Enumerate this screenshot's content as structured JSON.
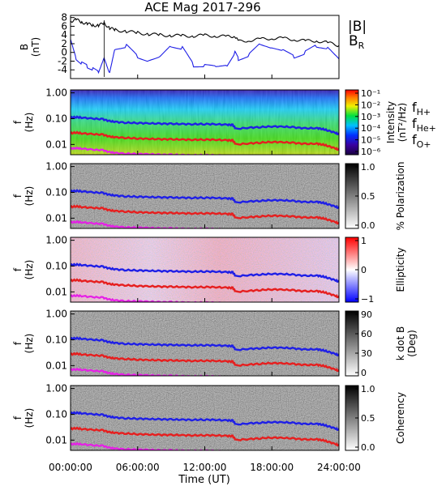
{
  "title": "ACE Mag 2017-296",
  "time_axis": {
    "label": "Time (UT)",
    "ticks": [
      "00:00:00",
      "06:00:00",
      "12:00:00",
      "18:00:00",
      "24:00:00"
    ],
    "range_hours": [
      0,
      24
    ]
  },
  "colors": {
    "B_total": "#000000",
    "B_R": "#1f1fe6",
    "f_H": "#1f1fe6",
    "f_He": "#e61f1f",
    "f_O": "#e61fe6"
  },
  "legend_B": {
    "total": "|B|",
    "radial_main": "B",
    "radial_sub": "R"
  },
  "legend_f": {
    "h": {
      "main": "f",
      "sub": "H+"
    },
    "he": {
      "main": "f",
      "sub": "He+"
    },
    "o": {
      "main": "f",
      "sub": "O+"
    }
  },
  "chart_data": {
    "type": "line",
    "panels": [
      {
        "id": "b-field",
        "ylabel": "B",
        "yunit": "(nT)",
        "ylim": [
          -6,
          8.5
        ],
        "yticks": [
          "8",
          "6",
          "4",
          "2",
          "0",
          "-2",
          "-4"
        ],
        "series": [
          {
            "name": "|B|",
            "x_hours": [
              0,
              0.5,
              1,
              1.5,
              2,
              2.5,
              3,
              3.5,
              4,
              5,
              6,
              7,
              8,
              9,
              10,
              11,
              12,
              13,
              14,
              14.7,
              15,
              16,
              17,
              18,
              19,
              20,
              21,
              22,
              23,
              24
            ],
            "values": [
              7.2,
              7.5,
              7.0,
              6.5,
              6.3,
              6.1,
              6.8,
              5.5,
              5.2,
              4.8,
              4.5,
              4.2,
              4.0,
              3.9,
              3.8,
              3.8,
              3.9,
              3.8,
              3.6,
              3.8,
              2.5,
              2.8,
              3.0,
              3.3,
              3.2,
              3.0,
              2.6,
              2.7,
              2.2,
              1.6
            ]
          },
          {
            "name": "B_R",
            "x_hours": [
              0,
              0.5,
              1,
              1.5,
              2,
              2.5,
              3,
              3.5,
              4,
              5,
              6,
              7,
              8,
              9,
              10,
              11,
              12,
              13,
              14,
              14.7,
              15,
              16,
              17,
              18,
              19,
              20,
              21,
              22,
              23,
              24
            ],
            "values": [
              3.0,
              -1.5,
              -2.5,
              -3.2,
              -3.8,
              -4.5,
              -1.2,
              -4.8,
              1.0,
              1.5,
              -1.0,
              -2.0,
              -1.0,
              1.5,
              1.0,
              -3.0,
              -3.0,
              -3.2,
              -3.0,
              0.0,
              -1.5,
              -0.5,
              2.0,
              1.0,
              0.5,
              -1.0,
              0.0,
              1.5,
              1.0,
              -1.5
            ]
          }
        ]
      },
      {
        "id": "intensity",
        "ylabel": "f",
        "yunit": "(Hz)",
        "colorbar_label": "Intensity",
        "colorbar_unit": "(nT²/Hz)",
        "colorbar_ticks": [
          "10⁻¹",
          "10⁻²",
          "10⁻³",
          "10⁻⁴",
          "10⁻⁵",
          "10⁻⁶"
        ],
        "colormap": "rainbow"
      },
      {
        "id": "polarization",
        "ylabel": "f",
        "yunit": "(Hz)",
        "colorbar_label": "% Polarization",
        "colorbar_ticks": [
          "1.0",
          "0.5",
          "0.0"
        ],
        "colormap": "grayscale"
      },
      {
        "id": "ellipticity",
        "ylabel": "f",
        "yunit": "(Hz)",
        "colorbar_label": "Ellipticity",
        "colorbar_ticks": [
          "1",
          "0",
          "−1"
        ],
        "colormap": "blue-white-red"
      },
      {
        "id": "kdotb",
        "ylabel": "f",
        "yunit": "(Hz)",
        "colorbar_label": "k dot B",
        "colorbar_unit": "(Deg)",
        "colorbar_ticks": [
          "90",
          "60",
          "30",
          "0"
        ],
        "colormap": "grayscale"
      },
      {
        "id": "coherency",
        "ylabel": "f",
        "yunit": "(Hz)",
        "colorbar_label": "Coherency",
        "colorbar_ticks": [
          "1.0",
          "0.5",
          "0.0"
        ],
        "colormap": "grayscale"
      }
    ],
    "frequency_axis": {
      "ylim_hz": [
        0.004,
        1.3
      ],
      "scale": "log",
      "yticks": [
        "1.00",
        "0.10",
        "0.01"
      ]
    },
    "cyclotron_lines": {
      "x_hours": [
        0,
        0.5,
        1,
        2,
        2.9,
        3.5,
        4,
        5,
        6,
        7,
        8,
        9,
        10,
        11,
        12,
        13,
        14,
        14.5,
        14.8,
        16,
        17,
        18,
        19,
        20,
        21,
        22,
        22.5,
        23,
        23.7,
        24
      ],
      "f_H": [
        0.11,
        0.115,
        0.11,
        0.1,
        0.095,
        0.08,
        0.075,
        0.07,
        0.068,
        0.066,
        0.064,
        0.063,
        0.062,
        0.061,
        0.062,
        0.061,
        0.058,
        0.057,
        0.04,
        0.045,
        0.047,
        0.05,
        0.049,
        0.046,
        0.042,
        0.043,
        0.04,
        0.035,
        0.028,
        0.024
      ],
      "f_He": [
        0.027,
        0.029,
        0.027,
        0.025,
        0.024,
        0.02,
        0.019,
        0.018,
        0.017,
        0.0165,
        0.016,
        0.0158,
        0.0155,
        0.0152,
        0.0155,
        0.0152,
        0.0145,
        0.0143,
        0.01,
        0.011,
        0.0118,
        0.0125,
        0.0122,
        0.0115,
        0.0105,
        0.0108,
        0.01,
        0.0088,
        0.007,
        0.006
      ],
      "f_O": [
        0.0069,
        0.0072,
        0.0069,
        0.0063,
        0.006,
        0.005,
        0.0047,
        0.0044,
        0.0043,
        0.0042,
        0.004,
        0.004,
        0.0039,
        0.0038,
        0.0039,
        0.0038,
        0.0036,
        0.0036,
        0.0025,
        0.0028,
        0.003,
        0.0031,
        0.003,
        0.0029,
        0.0026,
        0.0027,
        0.0025,
        0.0022,
        0.0018,
        0.0015
      ]
    }
  }
}
